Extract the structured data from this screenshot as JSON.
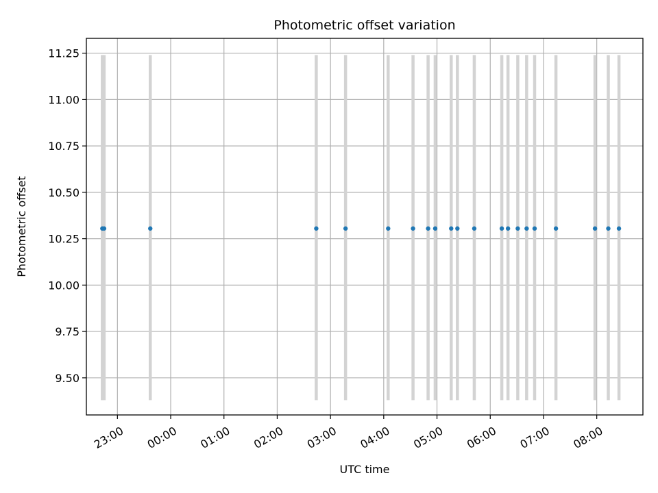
{
  "chart_data": {
    "type": "scatter",
    "title": "Photometric offset variation",
    "xlabel": "UTC time",
    "ylabel": "Photometric offset",
    "xlim": [
      "22:25",
      "08:52"
    ],
    "ylim": [
      9.3,
      11.33
    ],
    "x_ticks": [
      "23:00",
      "00:00",
      "01:00",
      "02:00",
      "03:00",
      "04:00",
      "05:00",
      "06:00",
      "07:00",
      "08:00"
    ],
    "y_ticks": [
      "9.50",
      "9.75",
      "10.00",
      "10.25",
      "10.50",
      "10.75",
      "11.00",
      "11.25"
    ],
    "grid": true,
    "error_bar_range": [
      9.38,
      11.24
    ],
    "series": [
      {
        "marker": "dot",
        "color": "#1f77b4",
        "error_bar_color": "#d3d3d3",
        "x": [
          "22:43",
          "22:45",
          "23:37",
          "02:44",
          "03:17",
          "04:05",
          "04:33",
          "04:50",
          "04:58",
          "05:16",
          "05:23",
          "05:42",
          "06:13",
          "06:20",
          "06:31",
          "06:41",
          "06:50",
          "07:14",
          "07:58",
          "08:13",
          "08:25"
        ],
        "y": [
          10.305,
          10.305,
          10.305,
          10.305,
          10.305,
          10.305,
          10.305,
          10.305,
          10.305,
          10.305,
          10.305,
          10.305,
          10.305,
          10.305,
          10.305,
          10.305,
          10.305,
          10.305,
          10.305,
          10.305,
          10.305
        ]
      }
    ]
  }
}
